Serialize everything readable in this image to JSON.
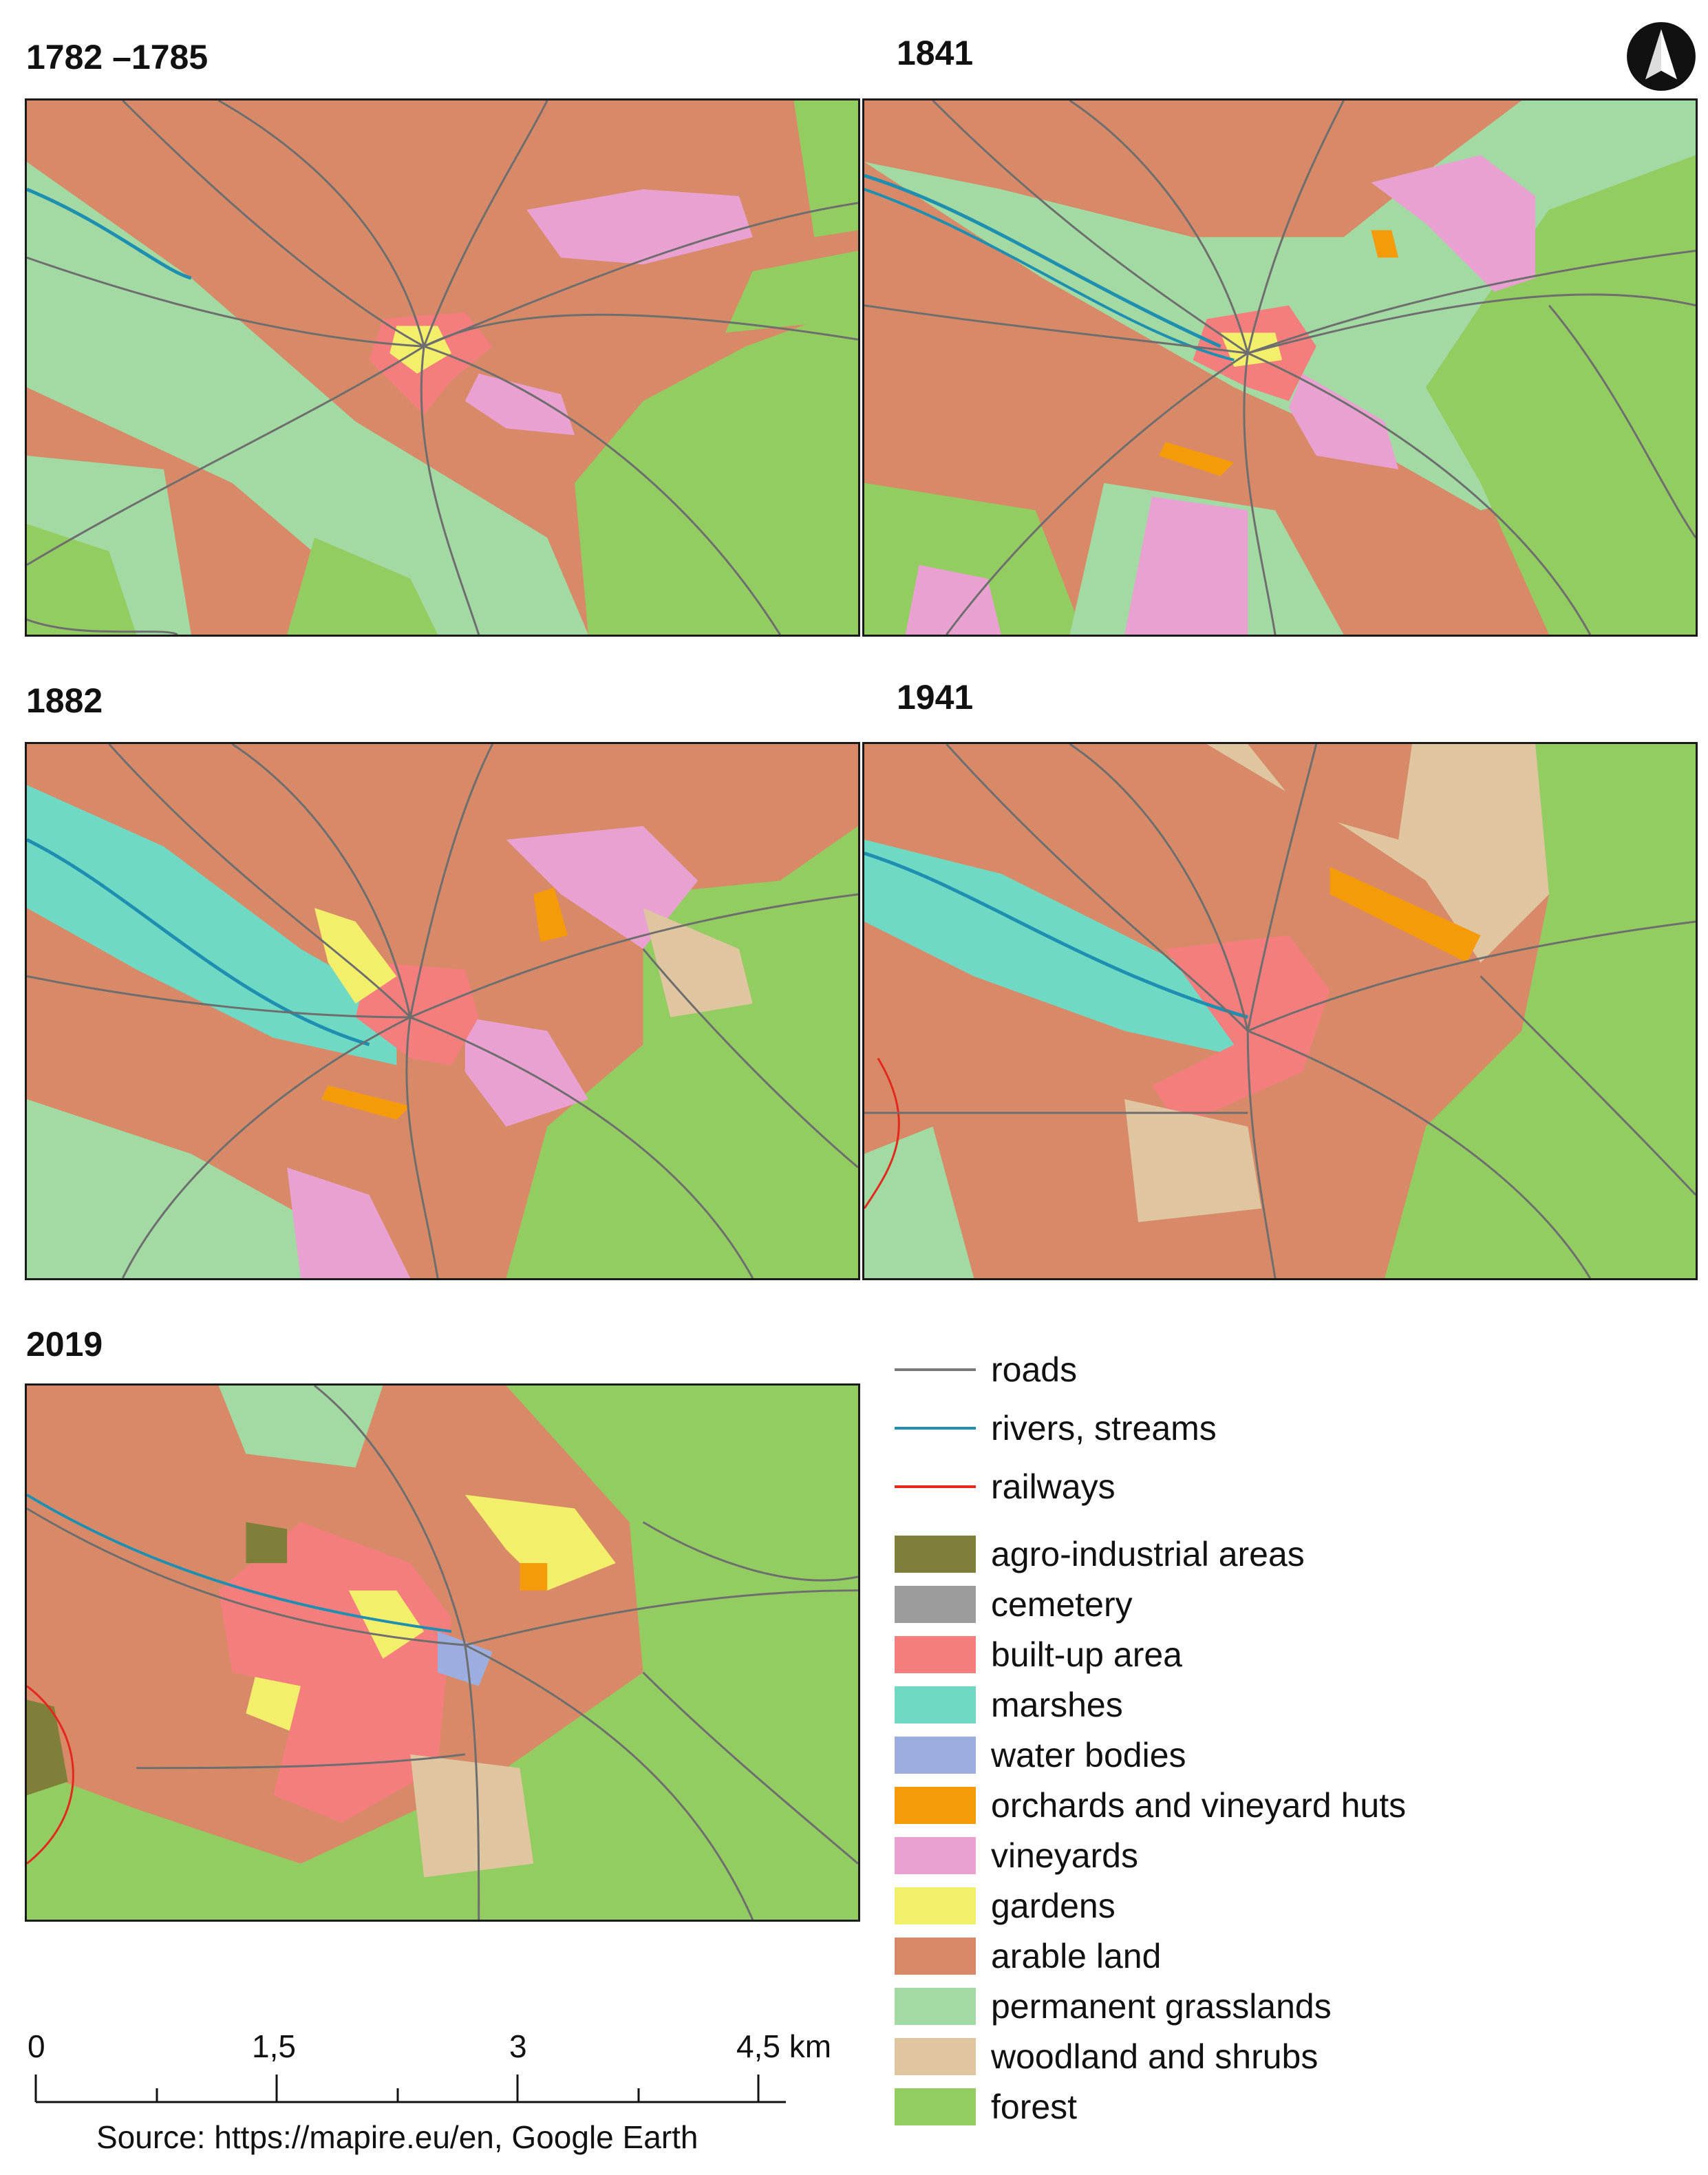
{
  "panels": [
    {
      "id": "p1782",
      "title": "1782 –1785"
    },
    {
      "id": "p1841",
      "title": "1841"
    },
    {
      "id": "p1882",
      "title": "1882"
    },
    {
      "id": "p1941",
      "title": "1941"
    },
    {
      "id": "p2019",
      "title": "2019"
    }
  ],
  "north_arrow": {
    "icon": "north-arrow-icon"
  },
  "legend": {
    "lines": [
      {
        "label": "roads",
        "color": "#7a7a7a"
      },
      {
        "label": "rivers, streams",
        "color": "#1e8fb0"
      },
      {
        "label": "railways",
        "color": "#e3281e"
      }
    ],
    "fills": [
      {
        "label": "agro-industrial areas",
        "color": "#7f7f3a"
      },
      {
        "label": "cemetery",
        "color": "#9c9c9c"
      },
      {
        "label": "built-up area",
        "color": "#f47d7d"
      },
      {
        "label": "marshes",
        "color": "#6fd9c4"
      },
      {
        "label": "water bodies",
        "color": "#9caee0"
      },
      {
        "label": "orchards and vineyard huts",
        "color": "#f59b0a"
      },
      {
        "label": "vineyards",
        "color": "#e9a1d1"
      },
      {
        "label": "gardens",
        "color": "#f4ef6b"
      },
      {
        "label": "arable land",
        "color": "#d88a68"
      },
      {
        "label": "permanent grasslands",
        "color": "#a3d9a2"
      },
      {
        "label": "woodland and shrubs",
        "color": "#dfc5a0"
      },
      {
        "label": "forest",
        "color": "#93cc61"
      }
    ]
  },
  "scale": {
    "ticks": [
      "0",
      "1,5",
      "3",
      "4,5 km"
    ],
    "source": "Source: https://mapire.eu/en, Google Earth"
  }
}
